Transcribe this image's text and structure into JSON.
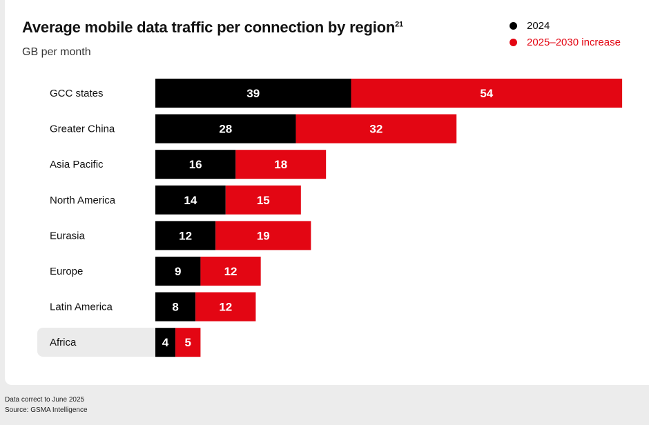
{
  "title": "Average mobile data traffic per connection by region",
  "title_superscript": "21",
  "subtitle": "GB per month",
  "legend": [
    {
      "label": "2024",
      "color": "#000000",
      "text_color": "#111111"
    },
    {
      "label": "2025–2030 increase",
      "color": "#e30613",
      "text_color": "#e30613"
    }
  ],
  "chart_data": {
    "type": "bar",
    "orientation": "horizontal",
    "stacked": true,
    "title": "Average mobile data traffic per connection by region",
    "unit": "GB per month",
    "categories": [
      "GCC states",
      "Greater China",
      "Asia Pacific",
      "North America",
      "Eurasia",
      "Europe",
      "Latin America",
      "Africa"
    ],
    "series": [
      {
        "name": "2024",
        "color": "#000000",
        "values": [
          39,
          28,
          16,
          14,
          12,
          9,
          8,
          4
        ]
      },
      {
        "name": "2025–2030 increase",
        "color": "#e30613",
        "values": [
          54,
          32,
          18,
          15,
          19,
          12,
          12,
          5
        ]
      }
    ],
    "highlighted_category": "Africa"
  },
  "footer": {
    "note": "Data correct to June 2025",
    "source": "Source: GSMA Intelligence"
  }
}
